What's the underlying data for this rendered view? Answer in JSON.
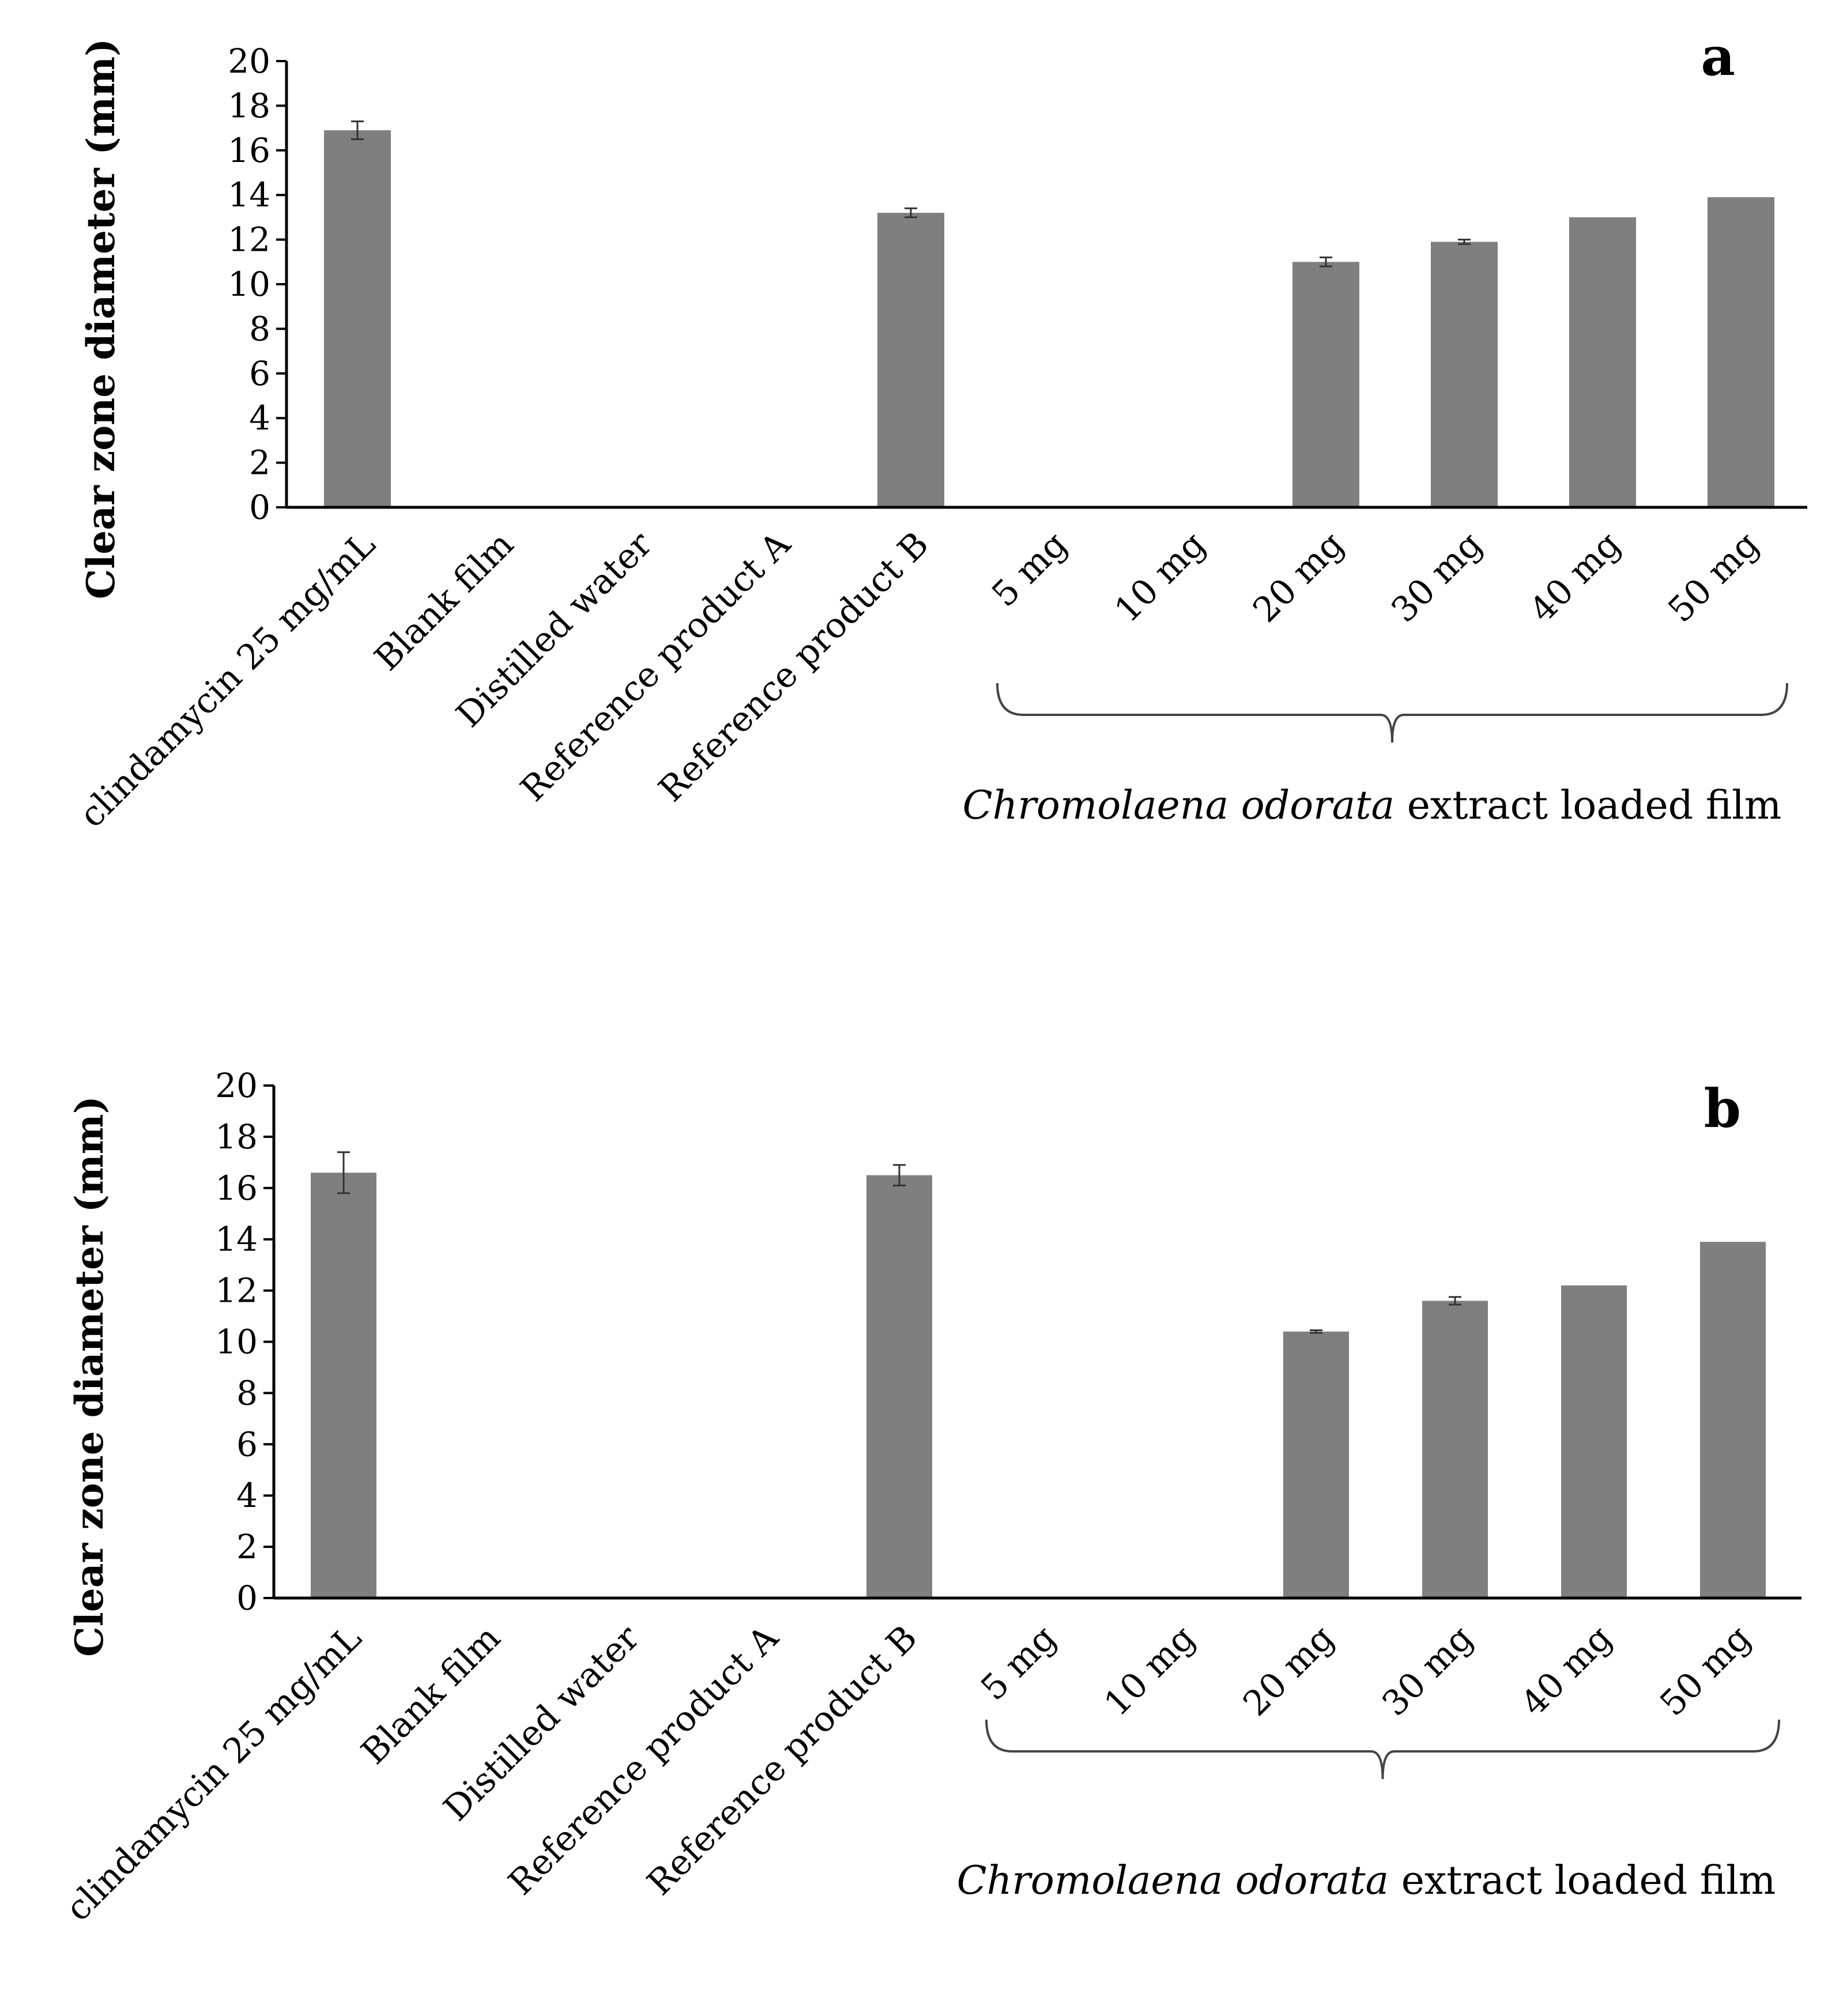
{
  "figure": {
    "shared": {
      "categories": [
        "clindamycin 25 mg/mL",
        "Blank film",
        "Distilled water",
        "Reference product A",
        "Reference product B",
        "5 mg",
        "10 mg",
        "20 mg",
        "30 mg",
        "40 mg",
        "50 mg"
      ],
      "group_label_italic": "Chromolaena odorata",
      "group_label_rest": " extract loaded film",
      "bar_color": "#7f7f7f",
      "axis_color": "#000000"
    }
  },
  "chart_data": [
    {
      "type": "bar",
      "panel": "a",
      "title": "",
      "xlabel": "",
      "ylabel": "Clear zone diameter (mm)",
      "ylim": [
        0,
        20
      ],
      "yticks": [
        0,
        2,
        4,
        6,
        8,
        10,
        12,
        14,
        16,
        18,
        20
      ],
      "categories": [
        "clindamycin 25 mg/mL",
        "Blank film",
        "Distilled water",
        "Reference product A",
        "Reference product B",
        "5 mg",
        "10 mg",
        "20 mg",
        "30 mg",
        "40 mg",
        "50 mg"
      ],
      "values": [
        16.9,
        0,
        0,
        0,
        13.2,
        0,
        0,
        11.0,
        11.9,
        13.0,
        13.9
      ],
      "errors": [
        0.4,
        0,
        0,
        0,
        0.2,
        0,
        0,
        0.2,
        0.1,
        0,
        0
      ],
      "group": {
        "label": "Chromolaena odorata extract loaded film",
        "from": "5 mg",
        "to": "50 mg"
      }
    },
    {
      "type": "bar",
      "panel": "b",
      "title": "",
      "xlabel": "",
      "ylabel": "Clear zone diameter (mm)",
      "ylim": [
        0,
        20
      ],
      "yticks": [
        0,
        2,
        4,
        6,
        8,
        10,
        12,
        14,
        16,
        18,
        20
      ],
      "categories": [
        "clindamycin 25 mg/mL",
        "Blank film",
        "Distilled water",
        "Reference product A",
        "Reference product B",
        "5 mg",
        "10 mg",
        "20 mg",
        "30 mg",
        "40 mg",
        "50 mg"
      ],
      "values": [
        16.6,
        0,
        0,
        0,
        16.5,
        0,
        0,
        10.4,
        11.6,
        12.2,
        13.9
      ],
      "errors": [
        0.8,
        0,
        0,
        0,
        0.4,
        0,
        0,
        0.05,
        0.15,
        0,
        0
      ],
      "group": {
        "label": "Chromolaena odorata extract loaded film",
        "from": "5 mg",
        "to": "50 mg"
      }
    }
  ]
}
